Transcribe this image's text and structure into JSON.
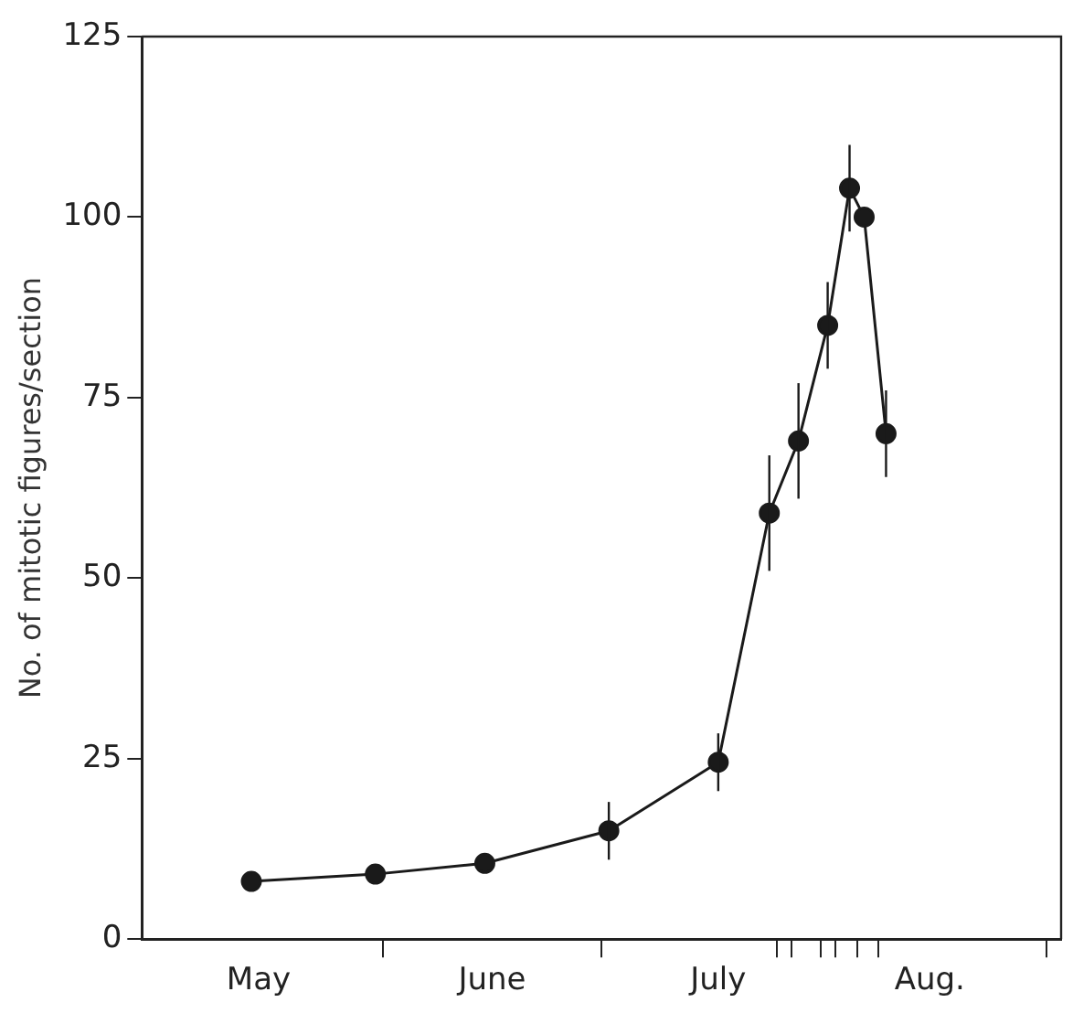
{
  "chart_data": {
    "type": "line",
    "ylabel": "No. of mitotic figures/section",
    "x": [
      "--05-14",
      "--05-31",
      "--06-15",
      "--07-02",
      "--07-17",
      "--07-24",
      "--07-28",
      "--08-01",
      "--08-04",
      "--08-06",
      "--08-09"
    ],
    "series": [
      {
        "color": "#1a1a1a",
        "values": [
          8,
          9,
          10.5,
          15,
          24.5,
          59,
          69,
          85,
          104,
          100,
          70
        ],
        "errors": [
          null,
          null,
          null,
          4,
          4,
          8,
          8,
          6,
          6,
          null,
          6
        ]
      }
    ],
    "xlim": [
      "--04-29",
      "--09-02"
    ],
    "xticks": [
      {
        "value": "--05-15",
        "label": "May"
      },
      {
        "value": "--06-01",
        "label": null
      },
      {
        "value": "--06-16",
        "label": "June"
      },
      {
        "value": "--07-01",
        "label": null
      },
      {
        "value": "--07-17",
        "label": "July"
      },
      {
        "value": "--07-25",
        "label": null
      },
      {
        "value": "--07-27",
        "label": null
      },
      {
        "value": "--07-31",
        "label": null
      },
      {
        "value": "--08-02",
        "label": null
      },
      {
        "value": "--08-05",
        "label": null
      },
      {
        "value": "--08-08",
        "label": null
      },
      {
        "value": "--08-15",
        "label": "Aug."
      },
      {
        "value": "--08-31",
        "label": null
      }
    ],
    "ylim": [
      0,
      125
    ],
    "yticks": [
      0,
      25,
      50,
      75,
      100,
      125
    ],
    "grid": false,
    "legend": false,
    "marker": "circle",
    "line_style": "solid"
  }
}
